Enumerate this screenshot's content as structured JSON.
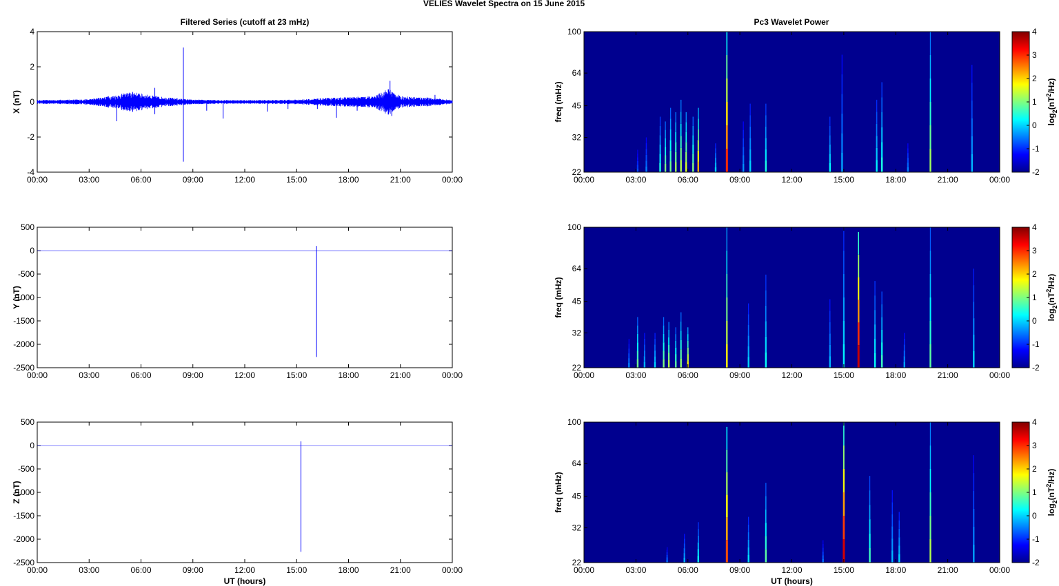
{
  "figure": {
    "suptitle": "VELIES Wavelet Spectra on 15 June      2015",
    "left_title": "Filtered Series (cutoff at 23 mHz)",
    "right_title": "Pc3 Wavelet Power"
  },
  "colors": {
    "series": "#0000ff",
    "background_power": "#00008f",
    "axis": "#000000"
  },
  "chart_data": [
    {
      "type": "line",
      "panel": "X",
      "ylabel": "X (nT)",
      "xlabel": "",
      "xlim": [
        0,
        24
      ],
      "ylim": [
        -4,
        4
      ],
      "yticks": [
        4,
        2,
        0,
        -2,
        -4
      ],
      "xticks": [
        "00:00",
        "03:00",
        "06:00",
        "09:00",
        "12:00",
        "15:00",
        "18:00",
        "21:00",
        "00:00"
      ],
      "series": [
        {
          "noise_envelope": [
            [
              0,
              0.08
            ],
            [
              3,
              0.12
            ],
            [
              4.5,
              0.3
            ],
            [
              5.5,
              0.45
            ],
            [
              6.5,
              0.3
            ],
            [
              7.5,
              0.2
            ],
            [
              9,
              0.1
            ],
            [
              12,
              0.08
            ],
            [
              15,
              0.1
            ],
            [
              17.5,
              0.2
            ],
            [
              19.5,
              0.25
            ],
            [
              20.3,
              0.6
            ],
            [
              21,
              0.25
            ],
            [
              22.5,
              0.2
            ],
            [
              24,
              0.08
            ]
          ],
          "spikes": [
            {
              "x": 4.6,
              "y": -1.1
            },
            {
              "x": 5.6,
              "y": 0.5
            },
            {
              "x": 6.8,
              "y": 0.8
            },
            {
              "x": 6.8,
              "y": -0.7
            },
            {
              "x": 8.45,
              "y": 3.1
            },
            {
              "x": 8.45,
              "y": -3.4
            },
            {
              "x": 9.8,
              "y": -0.5
            },
            {
              "x": 10.75,
              "y": -0.95
            },
            {
              "x": 13.3,
              "y": -0.55
            },
            {
              "x": 14.5,
              "y": -0.4
            },
            {
              "x": 16.2,
              "y": -0.4
            },
            {
              "x": 17.3,
              "y": -0.9
            },
            {
              "x": 18.5,
              "y": -0.5
            },
            {
              "x": 20.4,
              "y": 1.2
            },
            {
              "x": 20.5,
              "y": -0.8
            },
            {
              "x": 23.0,
              "y": 0.4
            }
          ]
        }
      ]
    },
    {
      "type": "line",
      "panel": "Y",
      "ylabel": "Y (nT)",
      "xlabel": "",
      "xlim": [
        0,
        24
      ],
      "ylim": [
        -2500,
        500
      ],
      "yticks": [
        500,
        0,
        -500,
        -1000,
        -1500,
        -2000,
        -2500
      ],
      "xticks": [
        "00:00",
        "03:00",
        "06:00",
        "09:00",
        "12:00",
        "15:00",
        "18:00",
        "21:00",
        "00:00"
      ],
      "series": [
        {
          "baseline": 0,
          "spikes": [
            {
              "x": 16.15,
              "y": 100
            },
            {
              "x": 16.15,
              "y": -2270
            }
          ]
        }
      ]
    },
    {
      "type": "line",
      "panel": "Z",
      "ylabel": "Z (nT)",
      "xlabel": "UT (hours)",
      "xlim": [
        0,
        24
      ],
      "ylim": [
        -2500,
        500
      ],
      "yticks": [
        500,
        0,
        -500,
        -1000,
        -1500,
        -2000,
        -2500
      ],
      "xticks": [
        "00:00",
        "03:00",
        "06:00",
        "09:00",
        "12:00",
        "15:00",
        "18:00",
        "21:00",
        "00:00"
      ],
      "series": [
        {
          "baseline": 0,
          "spikes": [
            {
              "x": 15.25,
              "y": 90
            },
            {
              "x": 15.25,
              "y": -2270
            }
          ]
        }
      ]
    },
    {
      "type": "heatmap",
      "panel": "X power",
      "ylabel": "freq (mHz)",
      "xlabel": "",
      "xlim": [
        0,
        24
      ],
      "ylim": [
        22,
        100
      ],
      "yscale": "log",
      "yticks": [
        100,
        64,
        45,
        32,
        22
      ],
      "xticks": [
        "00:00",
        "03:00",
        "06:00",
        "09:00",
        "12:00",
        "15:00",
        "18:00",
        "21:00",
        "00:00"
      ],
      "colorbar": {
        "label": "log2(nT²/Hz)",
        "range": [
          -2,
          4
        ],
        "ticks": [
          4,
          3,
          2,
          1,
          0,
          -1,
          -2
        ]
      },
      "streaks": [
        {
          "t": 3.1,
          "f_top": 28,
          "level": -0.8
        },
        {
          "t": 3.6,
          "f_top": 32,
          "level": -0.5
        },
        {
          "t": 4.4,
          "f_top": 40,
          "level": 0.4
        },
        {
          "t": 4.7,
          "f_top": 38,
          "level": 1.0
        },
        {
          "t": 5.0,
          "f_top": 44,
          "level": 0.9
        },
        {
          "t": 5.3,
          "f_top": 42,
          "level": 1.2
        },
        {
          "t": 5.6,
          "f_top": 48,
          "level": 1.3
        },
        {
          "t": 5.9,
          "f_top": 42,
          "level": 1.5
        },
        {
          "t": 6.3,
          "f_top": 40,
          "level": 1.0
        },
        {
          "t": 6.6,
          "f_top": 44,
          "level": 2.2
        },
        {
          "t": 7.6,
          "f_top": 30,
          "level": 0.0
        },
        {
          "t": 8.25,
          "f_top": 100,
          "level": 3.0
        },
        {
          "t": 9.2,
          "f_top": 38,
          "level": -0.4
        },
        {
          "t": 9.6,
          "f_top": 46,
          "level": 0.0
        },
        {
          "t": 10.5,
          "f_top": 46,
          "level": 0.4
        },
        {
          "t": 14.2,
          "f_top": 40,
          "level": 0.2
        },
        {
          "t": 14.9,
          "f_top": 78,
          "level": -0.3
        },
        {
          "t": 16.9,
          "f_top": 48,
          "level": 0.2
        },
        {
          "t": 17.2,
          "f_top": 58,
          "level": 0.4
        },
        {
          "t": 18.7,
          "f_top": 30,
          "level": -0.5
        },
        {
          "t": 20.0,
          "f_top": 100,
          "level": 1.2
        },
        {
          "t": 22.4,
          "f_top": 70,
          "level": -0.2
        }
      ]
    },
    {
      "type": "heatmap",
      "panel": "Y power",
      "ylabel": "freq (mHz)",
      "xlabel": "",
      "xlim": [
        0,
        24
      ],
      "ylim": [
        22,
        100
      ],
      "yscale": "log",
      "yticks": [
        100,
        64,
        45,
        32,
        22
      ],
      "xticks": [
        "00:00",
        "03:00",
        "06:00",
        "09:00",
        "12:00",
        "15:00",
        "18:00",
        "21:00",
        "00:00"
      ],
      "colorbar": {
        "label": "log2(nT²/Hz)",
        "range": [
          -2,
          4
        ],
        "ticks": [
          4,
          3,
          2,
          1,
          0,
          -1,
          -2
        ]
      },
      "streaks": [
        {
          "t": 2.6,
          "f_top": 30,
          "level": -0.5
        },
        {
          "t": 3.1,
          "f_top": 38,
          "level": 0.9
        },
        {
          "t": 3.5,
          "f_top": 32,
          "level": -0.2
        },
        {
          "t": 4.1,
          "f_top": 32,
          "level": 0.0
        },
        {
          "t": 4.6,
          "f_top": 38,
          "level": 1.0
        },
        {
          "t": 4.9,
          "f_top": 36,
          "level": 1.3
        },
        {
          "t": 5.3,
          "f_top": 34,
          "level": 0.8
        },
        {
          "t": 5.6,
          "f_top": 40,
          "level": 1.1
        },
        {
          "t": 6.0,
          "f_top": 34,
          "level": 1.8
        },
        {
          "t": 8.25,
          "f_top": 100,
          "level": 1.8
        },
        {
          "t": 9.5,
          "f_top": 44,
          "level": 0.0
        },
        {
          "t": 10.5,
          "f_top": 60,
          "level": 0.3
        },
        {
          "t": 14.2,
          "f_top": 46,
          "level": -0.2
        },
        {
          "t": 15.0,
          "f_top": 100,
          "level": 0.2
        },
        {
          "t": 15.85,
          "f_top": 95,
          "level": 3.6
        },
        {
          "t": 16.8,
          "f_top": 56,
          "level": 0.3
        },
        {
          "t": 17.2,
          "f_top": 50,
          "level": 0.6
        },
        {
          "t": 18.5,
          "f_top": 32,
          "level": -0.3
        },
        {
          "t": 20.0,
          "f_top": 100,
          "level": 0.8
        },
        {
          "t": 22.5,
          "f_top": 64,
          "level": 0.0
        }
      ]
    },
    {
      "type": "heatmap",
      "panel": "Z power",
      "ylabel": "freq (mHz)",
      "xlabel": "UT (hours)",
      "xlim": [
        0,
        24
      ],
      "ylim": [
        22,
        100
      ],
      "yscale": "log",
      "yticks": [
        100,
        64,
        45,
        32,
        22
      ],
      "xticks": [
        "00:00",
        "03:00",
        "06:00",
        "09:00",
        "12:00",
        "15:00",
        "18:00",
        "21:00",
        "00:00"
      ],
      "colorbar": {
        "label": "log2(nT²/Hz)",
        "range": [
          -2,
          4
        ],
        "ticks": [
          4,
          3,
          2,
          1,
          0,
          -1,
          -2
        ]
      },
      "streaks": [
        {
          "t": 4.8,
          "f_top": 26,
          "level": -0.6
        },
        {
          "t": 5.8,
          "f_top": 30,
          "level": -0.2
        },
        {
          "t": 6.6,
          "f_top": 34,
          "level": 0.3
        },
        {
          "t": 8.25,
          "f_top": 95,
          "level": 2.8
        },
        {
          "t": 9.5,
          "f_top": 36,
          "level": 0.1
        },
        {
          "t": 10.5,
          "f_top": 52,
          "level": 0.8
        },
        {
          "t": 13.8,
          "f_top": 28,
          "level": -0.6
        },
        {
          "t": 15.0,
          "f_top": 100,
          "level": 3.5
        },
        {
          "t": 16.5,
          "f_top": 56,
          "level": 0.6
        },
        {
          "t": 17.8,
          "f_top": 48,
          "level": -0.2
        },
        {
          "t": 18.2,
          "f_top": 38,
          "level": 0.0
        },
        {
          "t": 20.0,
          "f_top": 100,
          "level": 1.3
        },
        {
          "t": 22.5,
          "f_top": 70,
          "level": -0.3
        }
      ]
    }
  ]
}
